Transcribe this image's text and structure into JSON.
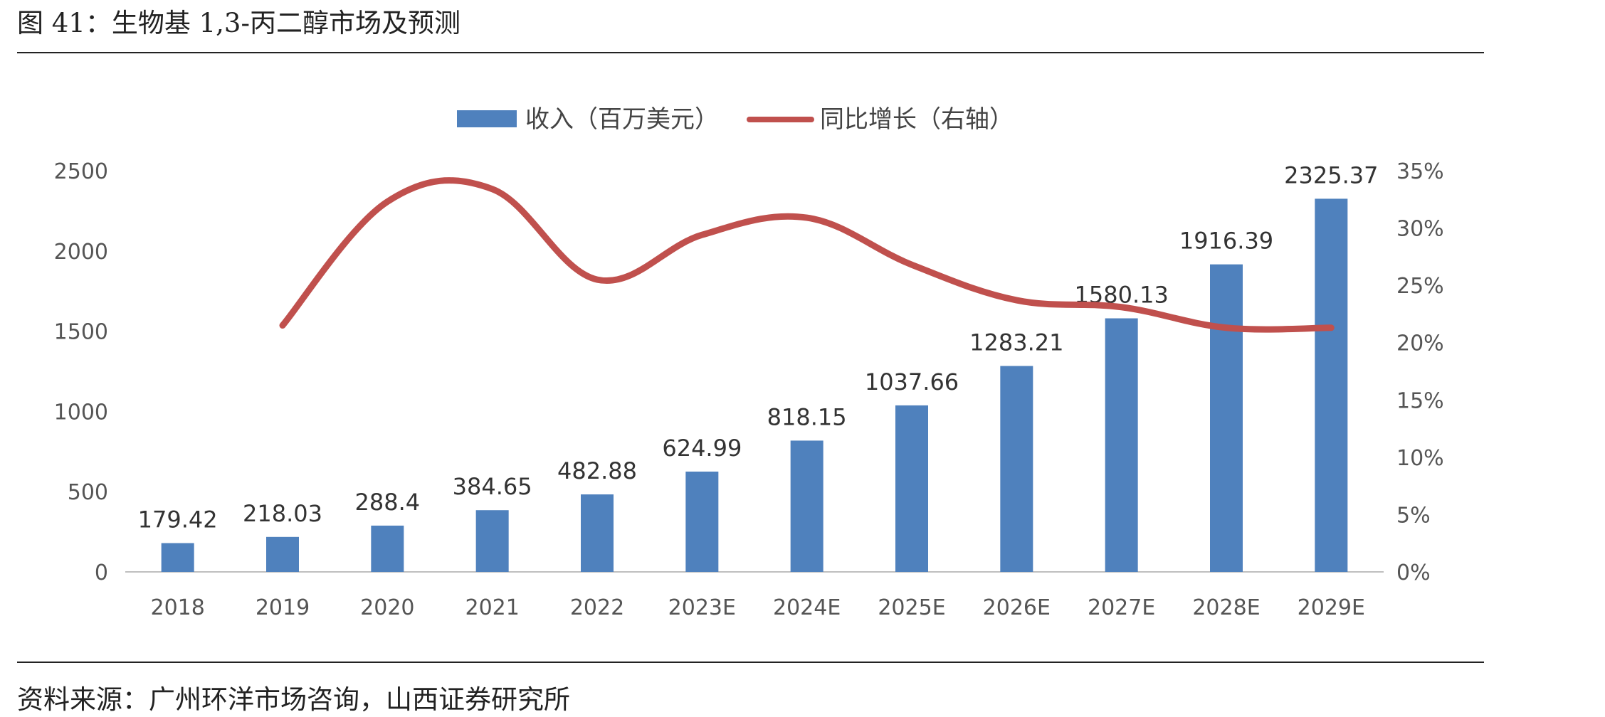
{
  "figure": {
    "title": "图 41：生物基 1,3-丙二醇市场及预测",
    "source": "资料来源：广州环洋市场咨询，山西证券研究所"
  },
  "colors": {
    "bar": "#4f81bd",
    "line": "#c0504d",
    "axis": "#bfbfbf"
  },
  "chart_data": {
    "type": "bar",
    "categories": [
      "2018",
      "2019",
      "2020",
      "2021",
      "2022",
      "2023E",
      "2024E",
      "2025E",
      "2026E",
      "2027E",
      "2028E",
      "2029E"
    ],
    "series": [
      {
        "name": "收入（百万美元）",
        "type": "bar",
        "axis": "left",
        "values": [
          179.42,
          218.03,
          288.4,
          384.65,
          482.88,
          624.99,
          818.15,
          1037.66,
          1283.21,
          1580.13,
          1916.39,
          2325.37
        ],
        "labels": [
          "179.42",
          "218.03",
          "288.4",
          "384.65",
          "482.88",
          "624.99",
          "818.15",
          "1037.66",
          "1283.21",
          "1580.13",
          "1916.39",
          "2325.37"
        ]
      },
      {
        "name": "同比增长（右轴）",
        "type": "line",
        "axis": "right",
        "values": [
          null,
          0.215,
          0.323,
          0.334,
          0.255,
          0.294,
          0.309,
          0.268,
          0.237,
          0.231,
          0.213,
          0.213
        ]
      }
    ],
    "y_left": {
      "min": 0,
      "max": 2500,
      "ticks": [
        "0",
        "500",
        "1000",
        "1500",
        "2000",
        "2500"
      ]
    },
    "y_right": {
      "min": 0,
      "max": 0.35,
      "ticks": [
        "0%",
        "5%",
        "10%",
        "15%",
        "20%",
        "25%",
        "30%",
        "35%"
      ]
    },
    "legend_position": "top-center",
    "grid": false
  }
}
